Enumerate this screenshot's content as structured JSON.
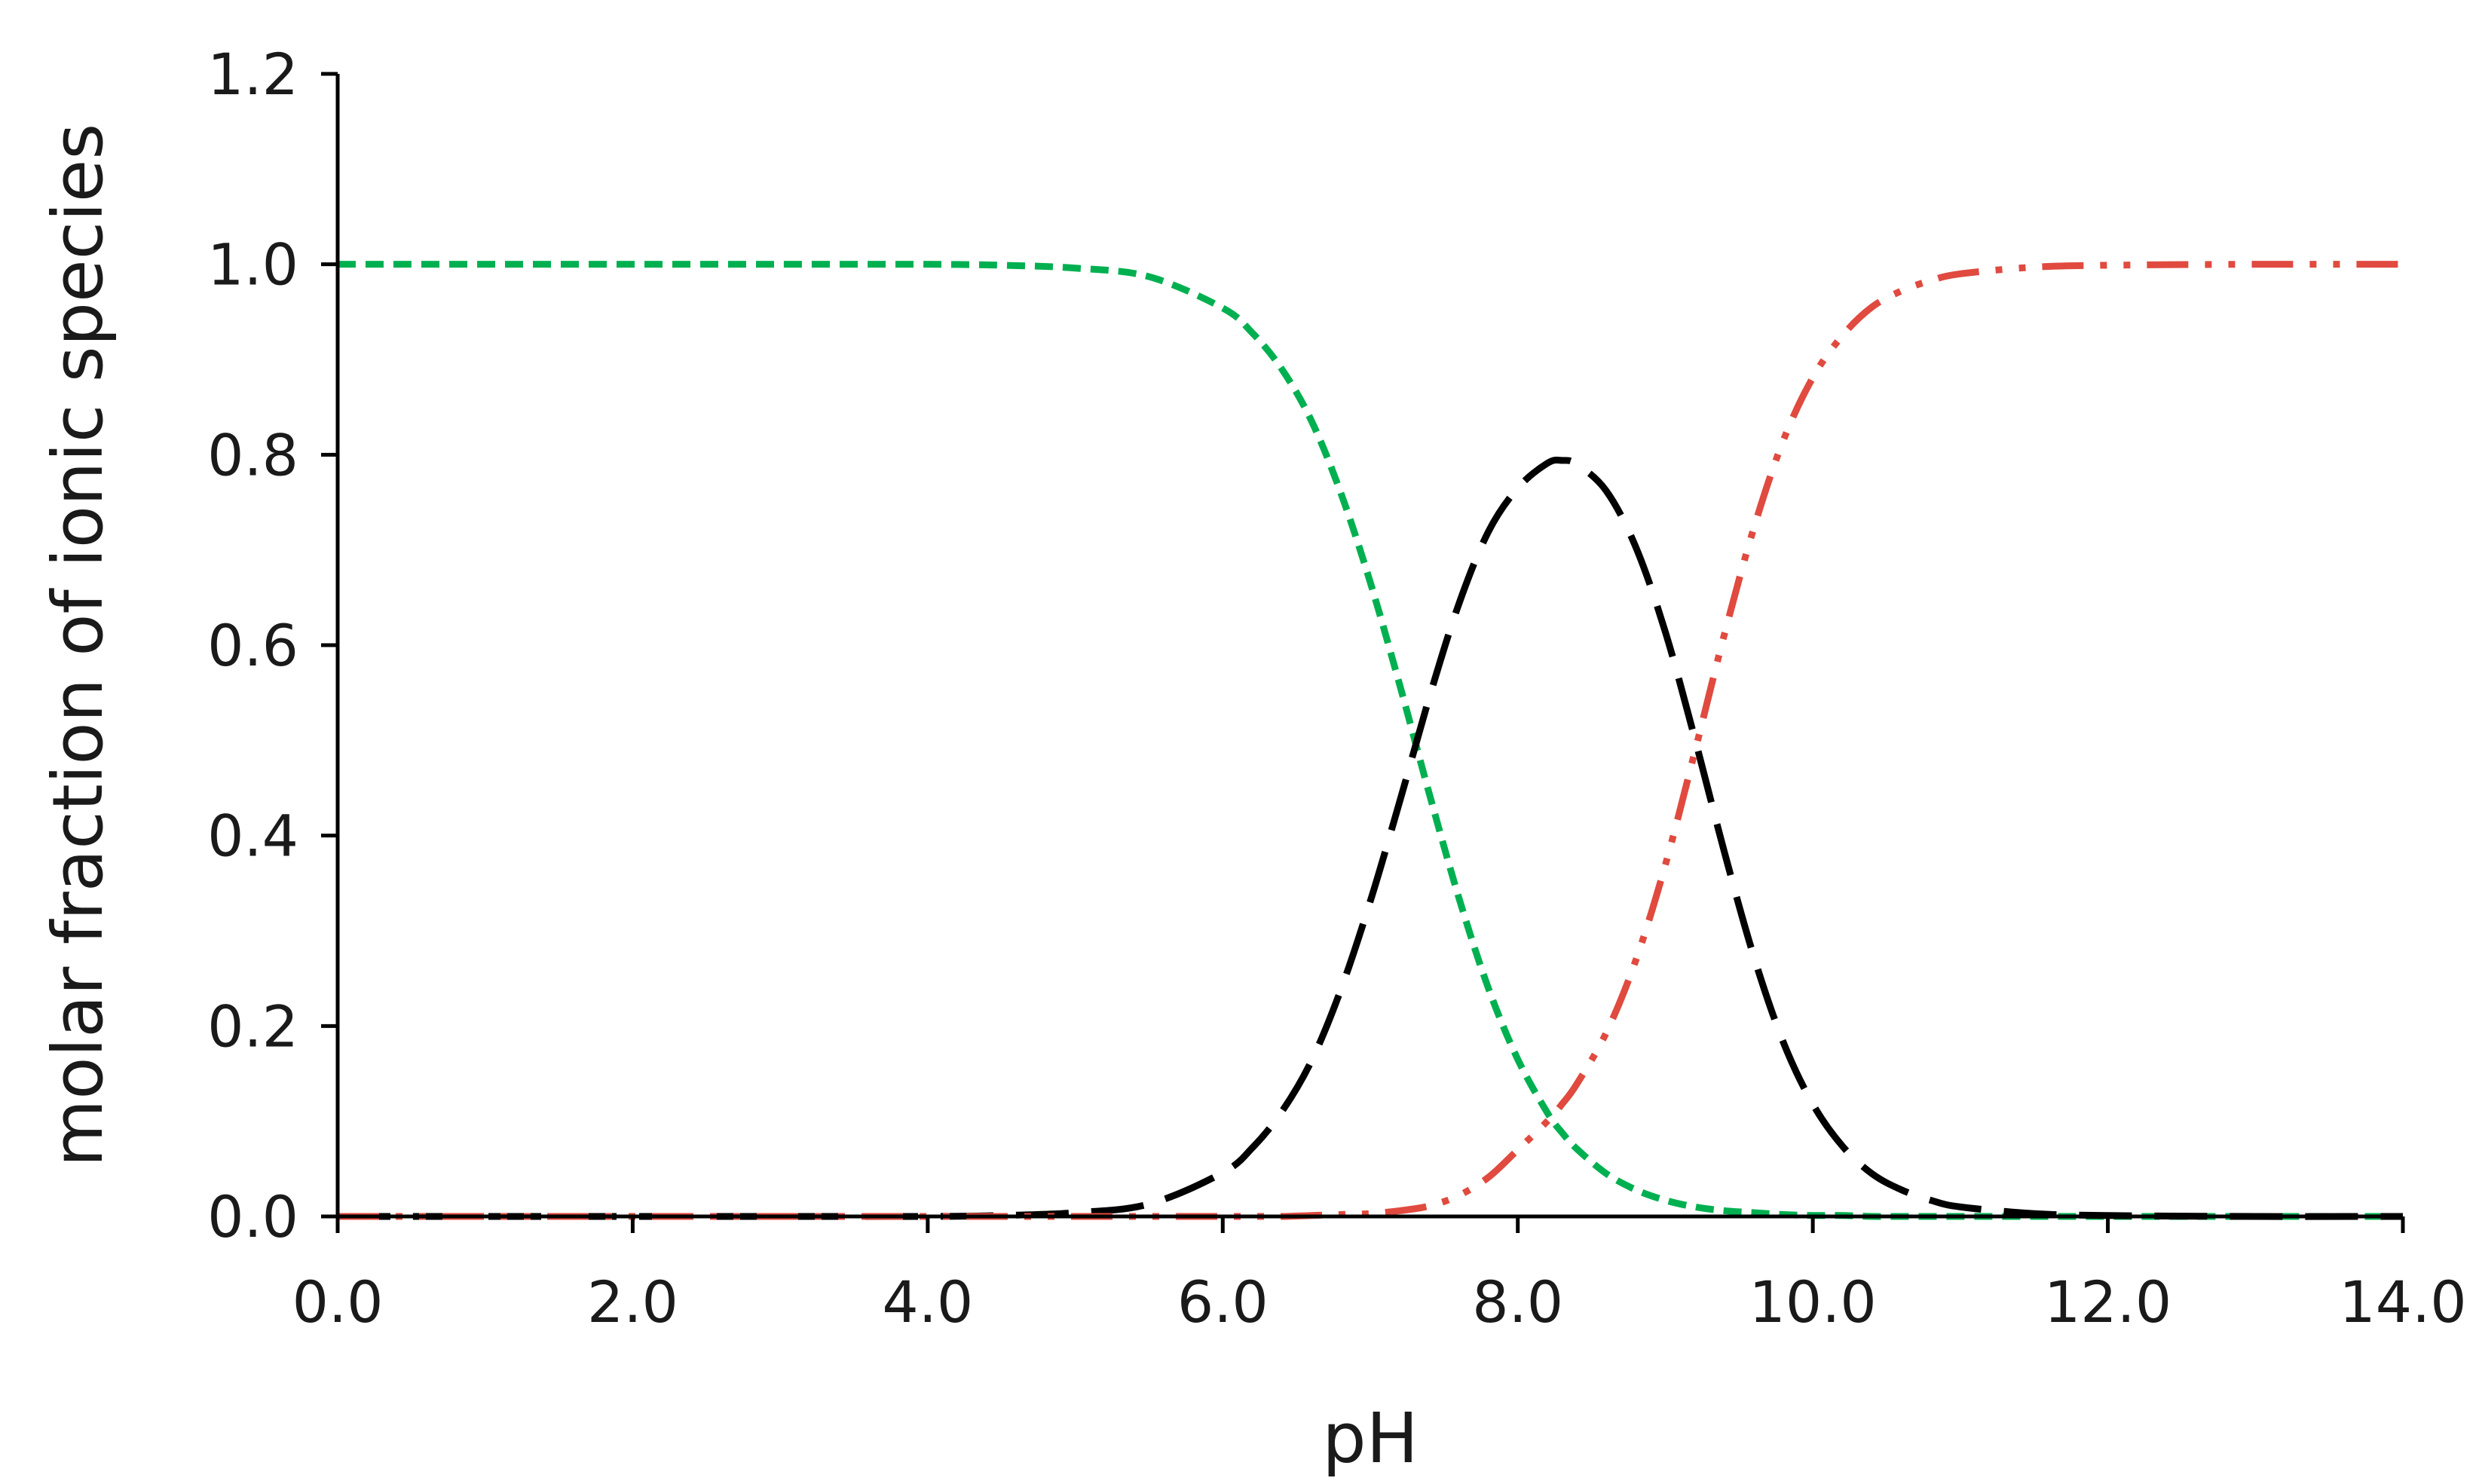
{
  "chart_data": {
    "type": "line",
    "title": "",
    "xlabel": "pH",
    "ylabel": "molar fraction of ionic species",
    "xlim": [
      0,
      14
    ],
    "ylim": [
      0,
      1.2
    ],
    "x_ticks": [
      "0.0",
      "2.0",
      "4.0",
      "6.0",
      "8.0",
      "10.0",
      "12.0",
      "14.0"
    ],
    "y_ticks": [
      "0.0",
      "0.2",
      "0.4",
      "0.6",
      "0.8",
      "1.0",
      "1.2"
    ],
    "grid": false,
    "legend": "none",
    "x": [
      0.0,
      1.0,
      2.0,
      3.0,
      4.0,
      4.5,
      5.0,
      5.5,
      6.0,
      6.2,
      6.4,
      6.6,
      6.8,
      7.0,
      7.2,
      7.4,
      7.6,
      7.8,
      8.0,
      8.2,
      8.3,
      8.4,
      8.6,
      8.8,
      9.0,
      9.2,
      9.4,
      9.6,
      9.8,
      10.0,
      10.2,
      10.4,
      10.6,
      10.8,
      11.0,
      11.5,
      12.0,
      13.0,
      14.0
    ],
    "series": [
      {
        "color": "#00b050",
        "dash": "short-dash",
        "values": [
          1.0,
          1.0,
          1.0,
          1.0,
          1.0,
          0.999,
          0.996,
          0.987,
          0.954,
          0.928,
          0.89,
          0.836,
          0.76,
          0.666,
          0.558,
          0.444,
          0.335,
          0.24,
          0.165,
          0.109,
          0.088,
          0.071,
          0.045,
          0.028,
          0.017,
          0.01,
          0.006,
          0.004,
          0.002,
          0.001,
          0.001,
          0.0,
          0.0,
          0.0,
          0.0,
          0.0,
          0.0,
          0.0,
          0.0
        ]
      },
      {
        "color": "#000000",
        "dash": "long-dash",
        "values": [
          0.0,
          0.0,
          0.0,
          0.0,
          0.0,
          0.001,
          0.004,
          0.013,
          0.046,
          0.072,
          0.11,
          0.163,
          0.238,
          0.331,
          0.436,
          0.545,
          0.643,
          0.719,
          0.765,
          0.791,
          0.794,
          0.79,
          0.762,
          0.703,
          0.614,
          0.502,
          0.383,
          0.273,
          0.183,
          0.118,
          0.074,
          0.045,
          0.028,
          0.017,
          0.01,
          0.003,
          0.001,
          0.0,
          0.0
        ]
      },
      {
        "color": "#e04a3f",
        "dash": "dash-dot-dot",
        "values": [
          0.0,
          0.0,
          0.0,
          0.0,
          0.0,
          0.0,
          0.0,
          0.0,
          0.0,
          0.0,
          0.0,
          0.001,
          0.002,
          0.003,
          0.006,
          0.011,
          0.022,
          0.041,
          0.07,
          0.1,
          0.118,
          0.139,
          0.193,
          0.269,
          0.369,
          0.488,
          0.611,
          0.723,
          0.815,
          0.881,
          0.925,
          0.955,
          0.972,
          0.983,
          0.99,
          0.997,
          0.999,
          1.0,
          1.0
        ]
      }
    ]
  }
}
